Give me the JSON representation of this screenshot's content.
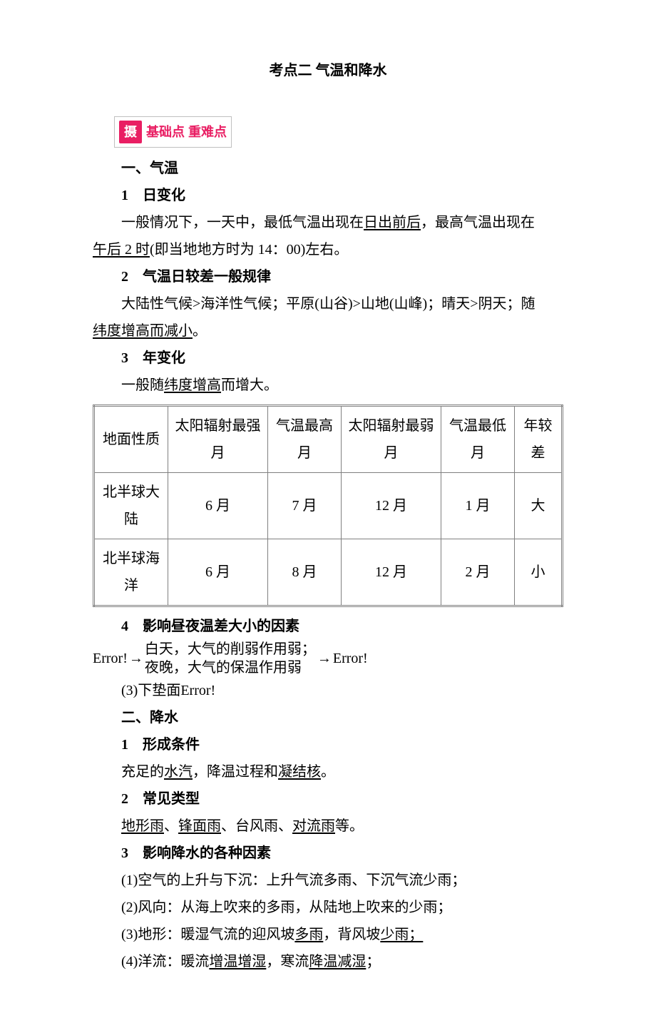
{
  "title": "考点二 气温和降水",
  "badge": {
    "icon": "摄",
    "text": "基础点 重难点"
  },
  "sec1": {
    "heading": "一、气温",
    "s1": {
      "h": "1　日变化",
      "t1": "一般情况下，一天中，最低气温出现在",
      "u1": "日出前后",
      "t2": "，最高气温出现在",
      "u2": "午后 2 时",
      "t3": "(即当地地方时为 14：00)左右。"
    },
    "s2": {
      "h": "2　气温日较差一般规律",
      "t1": "大陆性气候>海洋性气候；平原(山谷)>山地(山峰)；晴天>阴天；随",
      "u1": "纬度增高而减小",
      "t2": "。"
    },
    "s3": {
      "h": "3　年变化",
      "t1": "一般随",
      "u1": "纬度增高",
      "t2": "而增大。"
    },
    "table": {
      "headers": [
        "地面性质",
        "太阳辐射最强月",
        "气温最高月",
        "太阳辐射最弱月",
        "气温最低月",
        "年较差"
      ],
      "rows": [
        [
          "北半球大陆",
          "6 月",
          "7 月",
          "12 月",
          "1 月",
          "大"
        ],
        [
          "北半球海洋",
          "6 月",
          "8 月",
          "12 月",
          "2 月",
          "小"
        ]
      ]
    },
    "s4": {
      "h": "4　影响昼夜温差大小的因素",
      "err1": "Error!",
      "arrow1": "→",
      "line1": "白天，大气的削弱作用弱；",
      "line2": "夜晚，大气的保温作用弱",
      "arrow2": "→",
      "err2": "Error!",
      "p3a": "(3)下垫面",
      "p3b": "Error!"
    }
  },
  "sec2": {
    "heading": "二、降水",
    "s1": {
      "h": "1　形成条件",
      "t1": "充足的",
      "u1": "水汽",
      "t2": "，降温过程和",
      "u2": "凝结核",
      "t3": "。"
    },
    "s2": {
      "h": "2　常见类型",
      "u1": "地形雨",
      "t1": "、",
      "u2": "锋面雨",
      "t2": "、台风雨、",
      "u3": "对流雨",
      "t3": "等。"
    },
    "s3": {
      "h": "3　影响降水的各种因素",
      "p1": "(1)空气的上升与下沉：上升气流多雨、下沉气流少雨；",
      "p2": "(2)风向：从海上吹来的多雨，从陆地上吹来的少雨；",
      "p3a": "(3)地形：暖湿气流的迎风坡",
      "p3u1": "多雨",
      "p3b": "，背风坡",
      "p3u2": "少雨；",
      "p4a": "(4)洋流：暖流",
      "p4u1": "增温增湿",
      "p4b": "，寒流",
      "p4u2": "降温减湿",
      "p4c": "；"
    }
  }
}
